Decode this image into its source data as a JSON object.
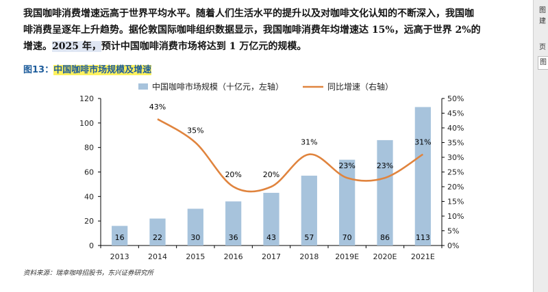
{
  "paragraph": {
    "line1": "我国咖啡消费增速远高于世界平均水平。随着人们生活水平的提升以及对咖啡文化认知的不断深入，我国咖",
    "line2": "啡消费呈逐年上升趋势。据伦敦国际咖啡组织数据显示，我国咖啡消费年均增速达 15%，远高于世界 2%的",
    "line3_a": "增速。",
    "line3_hl": "2025 年，",
    "line3_b": "预计中国咖啡消费市场将达到 1 万亿元的规模。"
  },
  "figure": {
    "number": "图13：",
    "title": "中国咖啡市场规模及增速"
  },
  "source": "资料来源：瑞幸咖啡招股书，东兴证券研究所",
  "sidebar": {
    "top_label": "图",
    "mid_label": "建",
    "lower_label": "页",
    "box_label": "图"
  },
  "chart_data": {
    "type": "bar",
    "categories": [
      "2013",
      "2014",
      "2015",
      "2016",
      "2017",
      "2018",
      "2019E",
      "2020E",
      "2021E"
    ],
    "series": [
      {
        "name": "中国咖啡市场规模（十亿元，左轴）",
        "type": "bar",
        "axis": "left",
        "color": "#a7c3dc",
        "values": [
          16,
          22,
          30,
          36,
          43,
          57,
          70,
          86,
          113
        ]
      },
      {
        "name": "同比增速（右轴）",
        "type": "line",
        "axis": "right",
        "color": "#e0843e",
        "values": [
          null,
          43,
          35,
          20,
          20,
          31,
          23,
          23,
          31
        ],
        "labels": [
          "",
          "43%",
          "35%",
          "20%",
          "20%",
          "31%",
          "23%",
          "23%",
          "31%"
        ]
      }
    ],
    "left_axis": {
      "min": 0,
      "max": 120,
      "ticks": [
        "0",
        "20",
        "40",
        "60",
        "80",
        "100",
        "120"
      ]
    },
    "right_axis": {
      "min": 0,
      "max": 50,
      "ticks": [
        "0%",
        "5%",
        "10%",
        "15%",
        "20%",
        "25%",
        "30%",
        "35%",
        "40%",
        "45%",
        "50%"
      ]
    },
    "legend": {
      "position": "top"
    }
  }
}
